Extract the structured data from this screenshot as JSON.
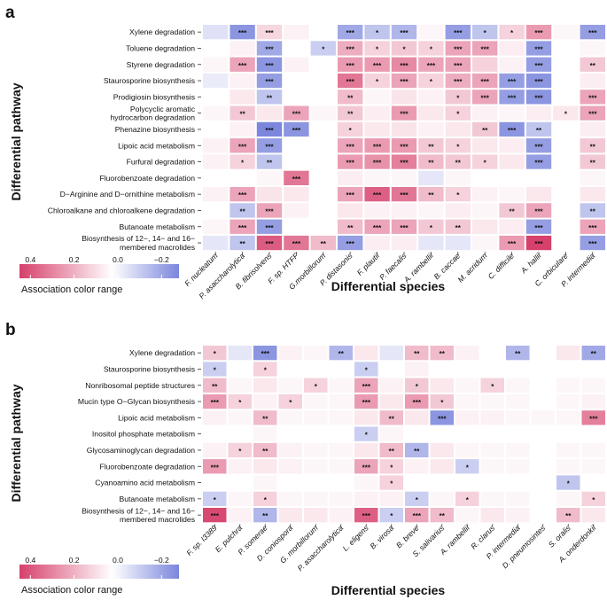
{
  "chart_data": [
    {
      "type": "heatmap",
      "panel": "a",
      "xlabel": "Differential species",
      "ylabel": "Differential pathway",
      "legend_title": "Association color range",
      "legend_ticks": [
        "0.4",
        "0.2",
        "0.0",
        "−0.2"
      ],
      "legend_range": [
        0.45,
        -0.28
      ],
      "colors": {
        "positive": "#d6406b",
        "neutral": "#ffffff",
        "negative": "#7b86dc"
      },
      "columns": [
        "F. nucleatum",
        "P. asaccharolytica",
        "B. fibrisolvens",
        "F. sp. HTFF",
        "G.morbillorum",
        "P. distasonis",
        "F. plautii",
        "P. faecalis",
        "A. rambellii",
        "B. caccae",
        "M. acridum",
        "C. difficile",
        "A. hallii",
        "C. orbiculare",
        "P. intermedia"
      ],
      "rows": [
        {
          "label": [
            "Xylene degradation"
          ],
          "values": [
            -0.06,
            -0.22,
            0.09,
            0.03,
            0.0,
            -0.18,
            -0.12,
            -0.15,
            0.02,
            -0.2,
            -0.12,
            0.1,
            0.22,
            0.02,
            -0.2
          ],
          "stars": [
            "",
            "***",
            "***",
            "",
            "",
            "***",
            "*",
            "***",
            "",
            "***",
            "*",
            "*",
            "***",
            "",
            "***"
          ]
        },
        {
          "label": [
            "Toluene degradation"
          ],
          "values": [
            0.0,
            0.03,
            -0.18,
            0.0,
            -0.1,
            0.18,
            0.1,
            0.12,
            0.1,
            0.2,
            0.2,
            0.04,
            -0.2,
            0.0,
            0.02
          ],
          "stars": [
            "",
            "",
            "***",
            "",
            "*",
            "***",
            "*",
            "*",
            "*",
            "***",
            "***",
            "",
            "***",
            "",
            ""
          ]
        },
        {
          "label": [
            "Styrene degradation"
          ],
          "values": [
            0.02,
            0.2,
            -0.22,
            0.03,
            0.0,
            0.22,
            0.22,
            0.26,
            0.2,
            0.2,
            0.1,
            0.03,
            -0.2,
            0.0,
            0.12
          ],
          "stars": [
            "",
            "***",
            "***",
            "",
            "",
            "***",
            "***",
            "***",
            "***",
            "***",
            "",
            "",
            "***",
            "",
            "**"
          ]
        },
        {
          "label": [
            "Staurosporine biosynthesis"
          ],
          "values": [
            -0.04,
            0.03,
            -0.2,
            0.0,
            0.0,
            0.3,
            0.1,
            0.2,
            0.1,
            0.18,
            0.2,
            -0.2,
            -0.22,
            0.0,
            0.04
          ],
          "stars": [
            "",
            "",
            "***",
            "",
            "",
            "***",
            "*",
            "***",
            "*",
            "***",
            "***",
            "***",
            "***",
            "",
            ""
          ]
        },
        {
          "label": [
            "Prodigiosin biosynthesis"
          ],
          "values": [
            0.0,
            0.05,
            -0.12,
            0.0,
            0.0,
            0.15,
            0.02,
            0.06,
            0.03,
            0.12,
            0.2,
            -0.2,
            -0.22,
            0.0,
            0.2
          ],
          "stars": [
            "",
            "",
            "**",
            "",
            "",
            "**",
            "",
            "",
            "",
            "*",
            "***",
            "***",
            "***",
            "",
            "***"
          ]
        },
        {
          "label": [
            "Polycyclic aromatic",
            "hydrocarbon degradation"
          ],
          "values": [
            0.02,
            0.12,
            0.05,
            0.2,
            0.02,
            0.12,
            0.04,
            0.22,
            0.05,
            0.1,
            0.03,
            0.02,
            0.04,
            0.05,
            0.2
          ],
          "stars": [
            "",
            "**",
            "",
            "***",
            "",
            "**",
            "",
            "***",
            "",
            "*",
            "",
            "",
            "",
            "*",
            "***"
          ]
        },
        {
          "label": [
            "Phenazine biosynthesis"
          ],
          "values": [
            0.0,
            0.03,
            -0.25,
            -0.22,
            0.0,
            0.1,
            0.05,
            0.06,
            0.03,
            0.05,
            0.12,
            -0.22,
            -0.12,
            0.0,
            0.04
          ],
          "stars": [
            "",
            "",
            "***",
            "***",
            "",
            "*",
            "",
            "",
            "",
            "",
            "**",
            "***",
            "**",
            "",
            ""
          ]
        },
        {
          "label": [
            "Lipoic acid metabolism"
          ],
          "values": [
            0.03,
            0.2,
            -0.2,
            0.0,
            0.0,
            0.2,
            0.22,
            0.22,
            0.12,
            0.1,
            0.05,
            0.04,
            -0.2,
            0.0,
            0.12
          ],
          "stars": [
            "",
            "***",
            "***",
            "",
            "",
            "***",
            "***",
            "***",
            "**",
            "*",
            "",
            "",
            "***",
            "",
            "**"
          ]
        },
        {
          "label": [
            "Furfural degradation"
          ],
          "values": [
            0.03,
            0.1,
            -0.12,
            0.0,
            0.0,
            0.22,
            0.24,
            0.28,
            0.15,
            0.12,
            0.1,
            0.05,
            -0.2,
            0.0,
            0.12
          ],
          "stars": [
            "",
            "*",
            "**",
            "",
            "",
            "***",
            "***",
            "***",
            "**",
            "**",
            "*",
            "",
            "***",
            "",
            "**"
          ]
        },
        {
          "label": [
            "Fluorobenzoate degradation"
          ],
          "values": [
            0.0,
            0.0,
            0.02,
            0.3,
            0.0,
            0.04,
            0.02,
            0.02,
            -0.05,
            0.02,
            0.0,
            0.0,
            0.0,
            0.0,
            0.02
          ],
          "stars": [
            "",
            "",
            "",
            "***",
            "",
            "",
            "",
            "",
            "",
            "",
            "",
            "",
            "",
            "",
            ""
          ]
        },
        {
          "label": [
            "D−Arginine and D−ornithine metabolism"
          ],
          "values": [
            0.03,
            0.2,
            0.06,
            0.05,
            0.0,
            0.2,
            0.35,
            0.3,
            0.15,
            0.1,
            0.03,
            0.02,
            0.05,
            0.0,
            0.05
          ],
          "stars": [
            "",
            "***",
            "",
            "",
            "",
            "***",
            "***",
            "***",
            "**",
            "*",
            "",
            "",
            "",
            "",
            ""
          ]
        },
        {
          "label": [
            "Chloroalkane and chloroalkene degradation"
          ],
          "values": [
            0.0,
            -0.12,
            0.2,
            0.03,
            0.0,
            0.05,
            0.03,
            0.03,
            0.02,
            0.04,
            0.02,
            0.12,
            0.2,
            0.0,
            -0.12
          ],
          "stars": [
            "",
            "**",
            "***",
            "",
            "",
            "",
            "",
            "",
            "",
            "",
            "",
            "**",
            "***",
            "",
            "**"
          ]
        },
        {
          "label": [
            "Butanoate metabolism"
          ],
          "values": [
            0.02,
            0.2,
            -0.2,
            0.0,
            0.0,
            0.15,
            0.2,
            0.2,
            0.12,
            0.12,
            0.05,
            0.04,
            -0.2,
            0.0,
            0.2
          ],
          "stars": [
            "",
            "***",
            "***",
            "",
            "",
            "**",
            "***",
            "***",
            "*",
            "**",
            "",
            "",
            "***",
            "",
            "***"
          ]
        },
        {
          "label": [
            "Biosynthesis of 12−, 14− and 16−",
            "membered macrolides"
          ],
          "values": [
            -0.05,
            -0.12,
            0.36,
            0.3,
            0.15,
            -0.2,
            0.04,
            0.04,
            -0.05,
            -0.05,
            0.02,
            0.22,
            0.42,
            0.0,
            -0.2
          ],
          "stars": [
            "",
            "**",
            "***",
            "***",
            "**",
            "***",
            "",
            "",
            "",
            "",
            "",
            "***",
            "***",
            "",
            "***"
          ]
        }
      ]
    },
    {
      "type": "heatmap",
      "panel": "b",
      "xlabel": "Differential species",
      "ylabel": "Differential pathway",
      "legend_title": "Association color range",
      "legend_ticks": [
        "0.4",
        "0.2",
        "0.0",
        "−0.2"
      ],
      "legend_range": [
        0.45,
        -0.28
      ],
      "colors": {
        "positive": "#d6406b",
        "neutral": "#ffffff",
        "negative": "#7b86dc"
      },
      "columns": [
        "F. sp. I3389",
        "E. pulchra",
        "P. somerae",
        "D. coniospora",
        "G. morbillorum",
        "P. asaccharolytica",
        "L. eligens",
        "B. virosa",
        "B. breve",
        "S. salivarius",
        "A. rambellii",
        "R. clarus",
        "P. intermedia",
        "D. pneumosintes",
        "S. oralis",
        "A. onderdonkii"
      ],
      "rows": [
        {
          "label": [
            "Xylene degradation"
          ],
          "values": [
            0.12,
            -0.05,
            -0.22,
            0.03,
            0.02,
            -0.15,
            0.05,
            -0.05,
            0.15,
            0.15,
            0.03,
            0.0,
            -0.15,
            0.0,
            0.05,
            -0.18
          ],
          "stars": [
            "*",
            "",
            "***",
            "",
            "",
            "**",
            "",
            "",
            "**",
            "**",
            "",
            "",
            "**",
            "",
            "",
            "**"
          ]
        },
        {
          "label": [
            "Staurosporine biosynthesis"
          ],
          "values": [
            -0.1,
            0.0,
            0.1,
            0.0,
            0.0,
            0.0,
            -0.1,
            0.0,
            0.03,
            0.0,
            0.0,
            0.0,
            0.0,
            0.0,
            0.0,
            0.0
          ],
          "stars": [
            "*",
            "",
            "*",
            "",
            "",
            "",
            "*",
            "",
            "",
            "",
            "",
            "",
            "",
            "",
            "",
            ""
          ]
        },
        {
          "label": [
            "Nonribosomal peptide structures"
          ],
          "values": [
            0.15,
            0.02,
            0.05,
            0.02,
            0.1,
            0.02,
            0.2,
            0.03,
            0.12,
            0.05,
            0.02,
            0.1,
            0.02,
            0.0,
            0.02,
            0.02
          ],
          "stars": [
            "**",
            "",
            "",
            "",
            "*",
            "",
            "***",
            "",
            "*",
            "",
            "",
            "*",
            "",
            "",
            "",
            ""
          ]
        },
        {
          "label": [
            "Mucin type O−Glycan biosynthesis"
          ],
          "values": [
            0.22,
            0.1,
            0.03,
            0.1,
            0.02,
            0.02,
            0.22,
            0.05,
            0.22,
            0.12,
            0.02,
            0.02,
            0.02,
            0.0,
            0.02,
            0.03
          ],
          "stars": [
            "***",
            "*",
            "",
            "*",
            "",
            "",
            "***",
            "",
            "***",
            "*",
            "",
            "",
            "",
            "",
            "",
            ""
          ]
        },
        {
          "label": [
            "Lipoic acid metabolism"
          ],
          "values": [
            0.03,
            0.02,
            0.15,
            0.02,
            0.02,
            0.02,
            0.05,
            0.15,
            0.05,
            -0.22,
            0.03,
            0.03,
            0.02,
            0.02,
            0.02,
            0.28
          ],
          "stars": [
            "",
            "",
            "**",
            "",
            "",
            "",
            "",
            "**",
            "",
            "***",
            "",
            "",
            "",
            "",
            "",
            "***"
          ]
        },
        {
          "label": [
            "Inositol phosphate metabolism"
          ],
          "values": [
            0.0,
            0.0,
            0.02,
            0.0,
            0.0,
            0.0,
            -0.1,
            0.02,
            0.0,
            0.0,
            0.0,
            0.0,
            0.0,
            0.0,
            0.0,
            0.0
          ],
          "stars": [
            "",
            "",
            "",
            "",
            "",
            "",
            "*",
            "",
            "",
            "",
            "",
            "",
            "",
            "",
            "",
            ""
          ]
        },
        {
          "label": [
            "Glycosaminoglycan degradation"
          ],
          "values": [
            0.03,
            0.1,
            0.15,
            0.03,
            0.02,
            0.02,
            0.05,
            0.15,
            -0.15,
            0.05,
            0.02,
            0.02,
            0.02,
            0.0,
            0.02,
            0.02
          ],
          "stars": [
            "",
            "*",
            "**",
            "",
            "",
            "",
            "",
            "**",
            "**",
            "",
            "",
            "",
            "",
            "",
            "",
            ""
          ]
        },
        {
          "label": [
            "Fluorobenzoate degradation"
          ],
          "values": [
            0.22,
            0.03,
            0.05,
            0.03,
            0.02,
            0.02,
            0.2,
            0.1,
            0.03,
            0.05,
            -0.1,
            0.02,
            0.02,
            0.0,
            0.02,
            0.02
          ],
          "stars": [
            "***",
            "",
            "",
            "",
            "",
            "",
            "***",
            "*",
            "",
            "",
            "*",
            "",
            "",
            "",
            "",
            ""
          ]
        },
        {
          "label": [
            "Cyanoamino acid metabolism"
          ],
          "values": [
            0.0,
            0.0,
            0.02,
            0.0,
            0.0,
            0.0,
            0.02,
            0.1,
            0.0,
            0.0,
            0.0,
            0.0,
            0.0,
            0.0,
            -0.12,
            0.0
          ],
          "stars": [
            "",
            "",
            "",
            "",
            "",
            "",
            "",
            "*",
            "",
            "",
            "",
            "",
            "",
            "",
            "*",
            ""
          ]
        },
        {
          "label": [
            "Butanoate metabolism"
          ],
          "values": [
            -0.1,
            0.02,
            0.1,
            0.02,
            0.02,
            0.02,
            0.03,
            0.03,
            -0.1,
            0.02,
            0.1,
            0.02,
            0.02,
            0.0,
            0.02,
            0.1
          ],
          "stars": [
            "*",
            "",
            "*",
            "",
            "",
            "",
            "",
            "",
            "*",
            "",
            "*",
            "",
            "",
            "",
            "",
            "*"
          ]
        },
        {
          "label": [
            "Biosynthesis of 12−, 14− and 16−",
            "membered macrolides"
          ],
          "values": [
            0.4,
            0.03,
            -0.15,
            0.05,
            0.05,
            0.03,
            0.35,
            -0.1,
            0.2,
            0.15,
            0.02,
            0.05,
            0.03,
            0.0,
            0.15,
            0.05
          ],
          "stars": [
            "***",
            "",
            "**",
            "",
            "",
            "",
            "***",
            "*",
            "***",
            "**",
            "",
            "",
            "",
            "",
            "**",
            ""
          ]
        }
      ]
    }
  ]
}
